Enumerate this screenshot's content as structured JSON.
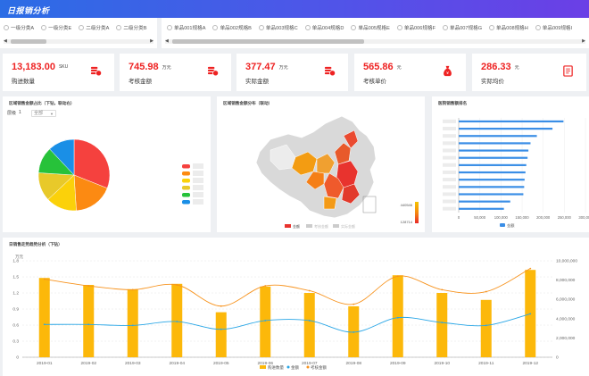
{
  "header": {
    "title": "日报销分析"
  },
  "filters": {
    "left": [
      "一级分类A",
      "一级分类E",
      "二级分类A",
      "二级分类B"
    ],
    "right": [
      "单品001规格A",
      "单品002规格B",
      "单品003规格C",
      "单品004规格D",
      "单品005规格E",
      "单品006规格F",
      "单品007规格G",
      "单品008规格H",
      "单品009规格I"
    ]
  },
  "kpis": [
    {
      "value": "13,183.00",
      "unit": "SKU",
      "label": "购进数量",
      "icon": "coins-icon",
      "color": "#e22222"
    },
    {
      "value": "745.98",
      "unit": "万元",
      "label": "考核金额",
      "icon": "coins-icon",
      "color": "#e22222"
    },
    {
      "value": "377.47",
      "unit": "万元",
      "label": "实际金额",
      "icon": "coins-icon",
      "color": "#e22222"
    },
    {
      "value": "565.86",
      "unit": "元",
      "label": "考核单价",
      "icon": "moneybag-icon",
      "color": "#e22222"
    },
    {
      "value": "286.33",
      "unit": "元",
      "label": "实际均价",
      "icon": "document-icon",
      "color": "#e22222"
    }
  ],
  "pie_panel": {
    "title": "区域销售金额占比（下钻，联动右）",
    "level_label": "层级",
    "level_value": "1",
    "select_value": "全部"
  },
  "map_panel": {
    "title": "区域销售金额分布（联动）",
    "legend": [
      "金额",
      "考核金额",
      "实际金额"
    ],
    "visual_max": "440546",
    "visual_min": "128714"
  },
  "bar_panel": {
    "title": "医院销售额排名",
    "xticks": [
      "0",
      "50,000",
      "100,000",
      "150,000",
      "200,000",
      "250,000",
      "300,000"
    ],
    "legend": "金额"
  },
  "combo_panel": {
    "title": "日销售走势趋势分析（下钻）",
    "left_unit": "万元",
    "legend": [
      "购进数量",
      "金额",
      "考核金额"
    ]
  },
  "chart_data": [
    {
      "type": "pie",
      "title": "区域销售金额占比（下钻，联动右）",
      "values": [
        31,
        18,
        14,
        13,
        12,
        12
      ],
      "colors": [
        "#f5413e",
        "#fc8a12",
        "#fbd10a",
        "#e8c92a",
        "#27c23a",
        "#1a8fe6"
      ]
    },
    {
      "type": "bar",
      "title": "医院销售额排名",
      "orientation": "horizontal",
      "values": [
        248000,
        222000,
        185000,
        170000,
        165000,
        163000,
        160000,
        158000,
        156000,
        155000,
        153000,
        122000,
        107000
      ],
      "xlim": [
        0,
        300000
      ],
      "color": "#3a8ee6"
    },
    {
      "type": "bar",
      "title": "日销售走势趋势分析（下钻）",
      "categories": [
        "2019-01",
        "2019-02",
        "2019-03",
        "2019-04",
        "2019-05",
        "2019-06",
        "2019-07",
        "2019-08",
        "2019-09",
        "2019-10",
        "2019-11",
        "2019-12"
      ],
      "ylim_left": [
        0,
        1.8
      ],
      "ylim_right": [
        0,
        10000000
      ],
      "yticks_left": [
        "0",
        "0.3",
        "0.6",
        "0.9",
        "1.2",
        "1.5",
        "1.8"
      ],
      "yticks_right": [
        "0",
        "2,000,000",
        "4,000,000",
        "6,000,000",
        "8,000,000",
        "10,000,000"
      ],
      "series": [
        {
          "name": "购进数量",
          "kind": "bar",
          "axis": "left",
          "color": "#fcb80a",
          "values": [
            1.48,
            1.35,
            1.27,
            1.37,
            0.84,
            1.32,
            1.2,
            0.95,
            1.53,
            1.2,
            1.07,
            1.63
          ]
        },
        {
          "name": "金额",
          "kind": "line",
          "axis": "right",
          "color": "#29a6e6",
          "values": [
            3400000,
            3400000,
            3300000,
            3700000,
            2900000,
            3800000,
            3800000,
            2600000,
            4100000,
            3600000,
            3300000,
            4500000
          ]
        },
        {
          "name": "考核金额",
          "kind": "line",
          "axis": "right",
          "color": "#f7931e",
          "values": [
            8100000,
            7400000,
            7000000,
            7500000,
            5300000,
            7400000,
            6900000,
            5500000,
            8400000,
            7000000,
            6800000,
            9200000
          ]
        }
      ]
    }
  ]
}
